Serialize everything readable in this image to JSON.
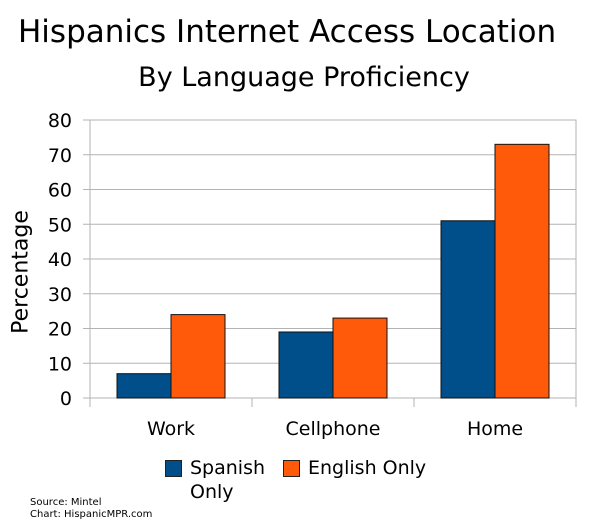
{
  "chart_data": {
    "type": "bar",
    "title": "Hispanics Internet Access Location",
    "subtitle": "By Language Proficiency",
    "xlabel": "",
    "ylabel": "Percentage",
    "categories": [
      "Work",
      "Cellphone",
      "Home"
    ],
    "series": [
      {
        "name": "Spanish Only",
        "values": [
          7,
          19,
          51
        ],
        "color": "#004e8a"
      },
      {
        "name": "English Only",
        "values": [
          24,
          23,
          73
        ],
        "color": "#ff5a0a"
      }
    ],
    "ylim": [
      0,
      80
    ],
    "yticks": [
      "0",
      "10",
      "20",
      "30",
      "40",
      "50",
      "60",
      "70",
      "80"
    ],
    "grid": true,
    "legend_position": "bottom"
  },
  "source": {
    "line1": "Source: Mintel",
    "line2": "Chart: HispanicMPR.com"
  },
  "colors": {
    "grid": "#b3b3b3",
    "bar_outline": "#111111"
  }
}
